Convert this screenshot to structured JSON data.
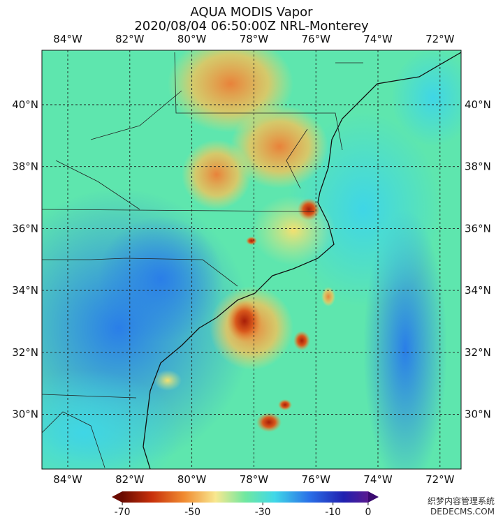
{
  "title": [
    "AQUA MODIS Vapor",
    "2020/08/04 06:50:00Z NRL-Monterey"
  ],
  "longitude_labels": [
    "84°W",
    "82°W",
    "80°W",
    "78°W",
    "76°W",
    "74°W",
    "72°W"
  ],
  "latitude_labels": [
    "40°N",
    "38°N",
    "36°N",
    "34°N",
    "32°N",
    "30°N"
  ],
  "colorbar": {
    "lim": [
      -73,
      3
    ],
    "ticks": [
      -70,
      -50,
      -30,
      -10,
      0
    ]
  },
  "watermark": [
    "织梦内容管理系统",
    "DEDECMS.COM"
  ]
}
